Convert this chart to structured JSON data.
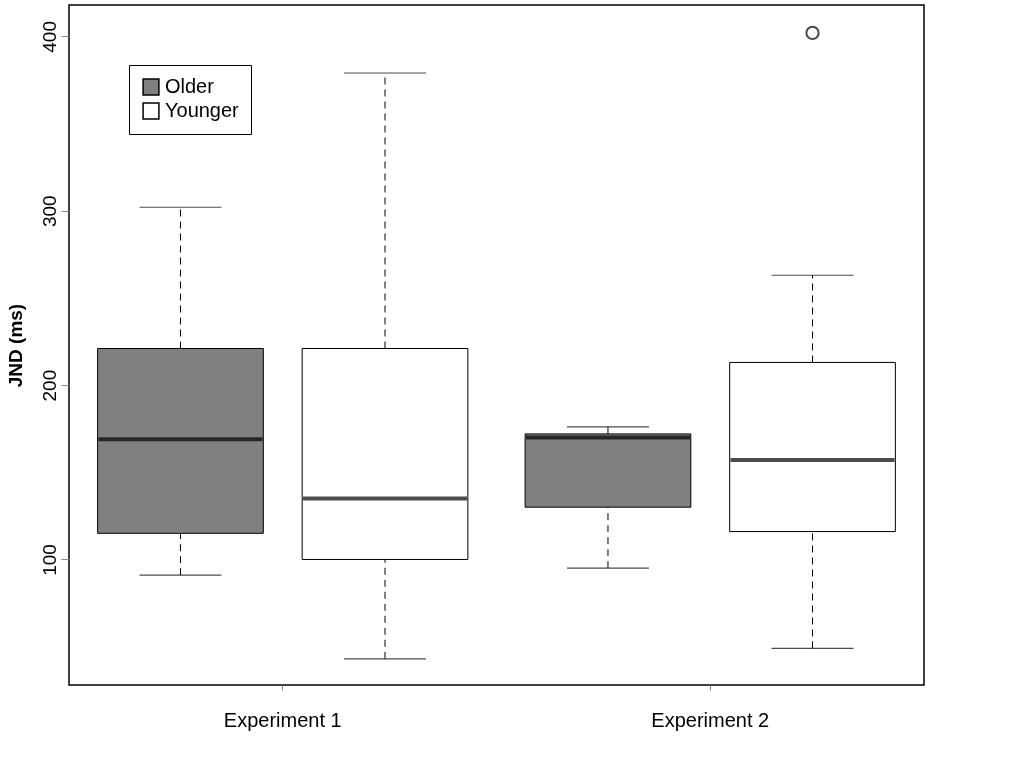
{
  "chart_data": {
    "type": "box",
    "ylabel": "JND (ms)",
    "categories": [
      "Experiment 1",
      "Experiment 2"
    ],
    "series": [
      {
        "name": "Older",
        "color": "#808080",
        "boxes": [
          {
            "low": 91,
            "q1": 115,
            "median": 169,
            "q3": 221,
            "high": 302
          },
          {
            "low": 95,
            "q1": 130,
            "median": 170,
            "q3": 172,
            "high": 176
          }
        ]
      },
      {
        "name": "Younger",
        "color": "#ffffff",
        "boxes": [
          {
            "low": 43,
            "q1": 100,
            "median": 135,
            "q3": 221,
            "high": 379
          },
          {
            "low": 49,
            "q1": 116,
            "median": 157,
            "q3": 213,
            "high": 263,
            "outliers": [
              402
            ]
          }
        ]
      }
    ],
    "ylim": [
      28,
      418
    ],
    "yticks": [
      100,
      200,
      300,
      400
    ],
    "grid": false,
    "legend": "top left"
  }
}
